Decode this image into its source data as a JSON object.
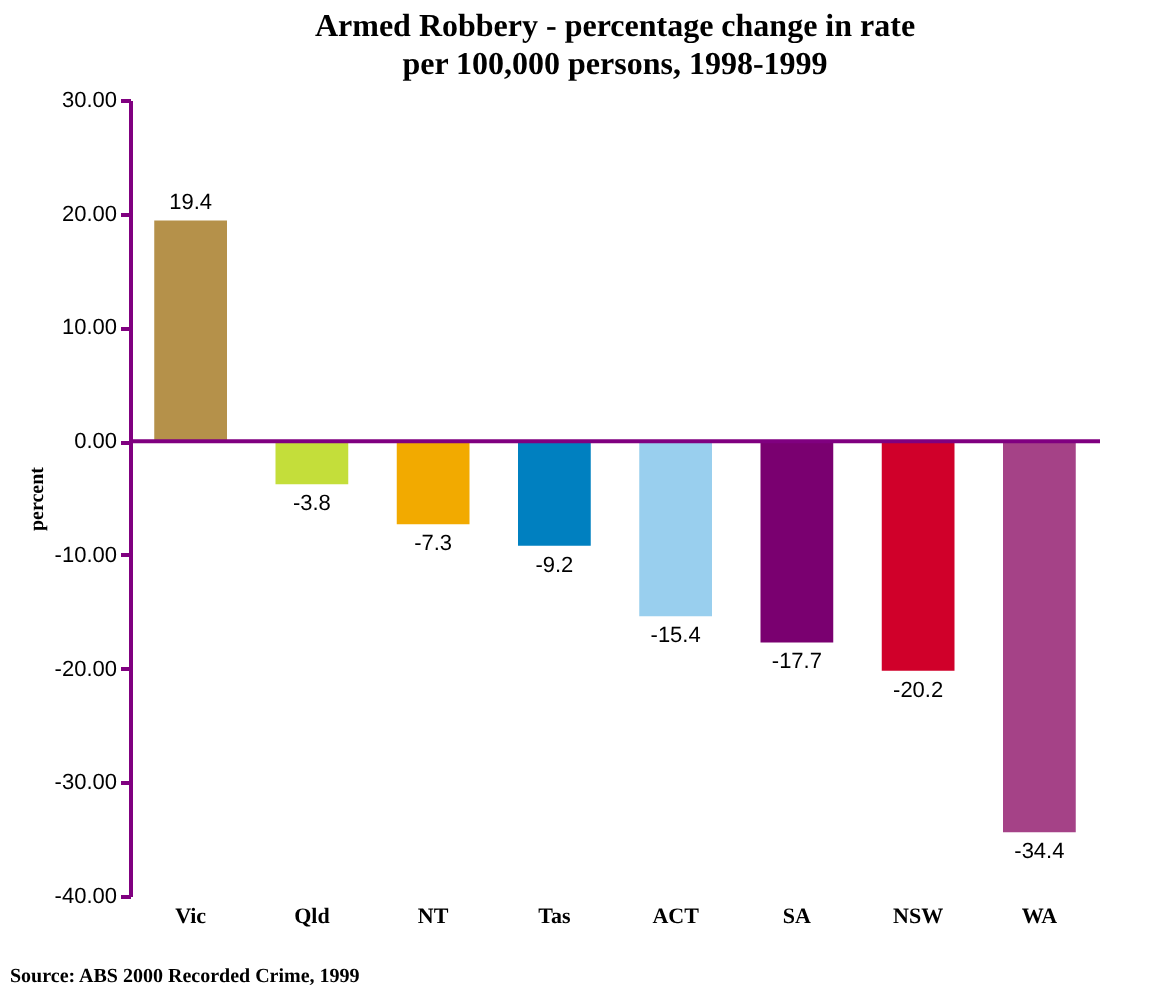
{
  "chart_data": {
    "type": "bar",
    "title": "Armed Robbery - percentage change in rate per 100,000 persons, 1998-1999",
    "ylabel": "percent",
    "categories": [
      "Vic",
      "Qld",
      "NT",
      "Tas",
      "ACT",
      "SA",
      "NSW",
      "WA"
    ],
    "values": [
      19.4,
      -3.8,
      -7.3,
      -9.2,
      -15.4,
      -17.7,
      -20.2,
      -34.4
    ],
    "colors": [
      "#b5914a",
      "#c4de3a",
      "#f2aa00",
      "#0080c0",
      "#99cfee",
      "#7a0070",
      "#d0002a",
      "#a54287"
    ],
    "ylim": [
      -40,
      30
    ],
    "yticks": [
      {
        "value": -40,
        "label": "-40.00"
      },
      {
        "value": -30,
        "label": "-30.00"
      },
      {
        "value": -20,
        "label": "-20.00"
      },
      {
        "value": -10,
        "label": "-10.00"
      },
      {
        "value": 0,
        "label": "0.00"
      },
      {
        "value": 10,
        "label": "10.00"
      },
      {
        "value": 20,
        "label": "20.00"
      },
      {
        "value": 30,
        "label": "30.00"
      }
    ],
    "ref_lines": [
      {
        "axis": "y",
        "value": 0,
        "color": "#800080",
        "line_style": "solid"
      }
    ],
    "data_labels": true,
    "grid": false,
    "annotations": [
      "Source: ABS 2000 Recorded Crime, 1999"
    ]
  }
}
